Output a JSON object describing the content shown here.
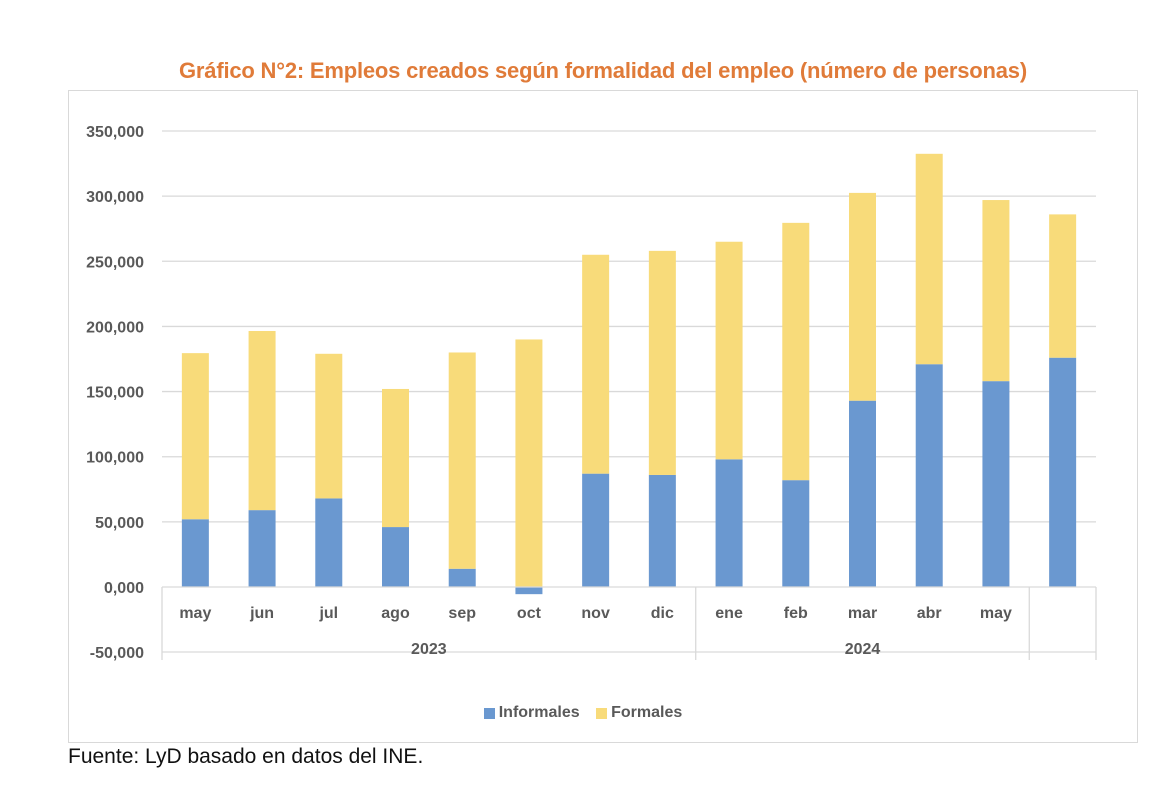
{
  "chart_data": {
    "type": "bar",
    "stacked": true,
    "title": "Gráfico N°2: Empleos creados según formalidad del empleo (número de personas)",
    "xlabel": "",
    "ylabel": "",
    "ylim": [
      -50000,
      350000
    ],
    "yticks": [
      350000,
      300000,
      250000,
      200000,
      150000,
      100000,
      50000,
      0,
      -50000
    ],
    "ytick_labels": [
      "350,000",
      "300,000",
      "250,000",
      "200,000",
      "150,000",
      "100,000",
      "50,000",
      "0,000",
      "-50,000"
    ],
    "grid": true,
    "categories": [
      "may",
      "jun",
      "jul",
      "ago",
      "sep",
      "oct",
      "nov",
      "dic",
      "ene",
      "feb",
      "mar",
      "abr",
      "may",
      ""
    ],
    "groups": [
      {
        "label": "2023",
        "start": 0,
        "end": 7
      },
      {
        "label": "2024",
        "start": 8,
        "end": 12
      },
      {
        "label": "",
        "start": 13,
        "end": 13
      }
    ],
    "series": [
      {
        "name": "Informales",
        "color": "#6A98D0",
        "values": [
          52000,
          59000,
          68000,
          46000,
          14000,
          -5500,
          87000,
          86000,
          98000,
          82000,
          143000,
          171000,
          158000,
          176000
        ]
      },
      {
        "name": "Formales",
        "color": "#F8DB7A",
        "values": [
          127500,
          137500,
          111000,
          106000,
          166000,
          190000,
          168000,
          172000,
          167000,
          197500,
          159500,
          161500,
          139000,
          110000
        ]
      }
    ],
    "legend_position": "bottom"
  },
  "source": "Fuente: LyD basado en datos del INE.",
  "colors": {
    "title": "#E07B39",
    "grid": "#d9d9d9",
    "axis_text": "#595959"
  }
}
